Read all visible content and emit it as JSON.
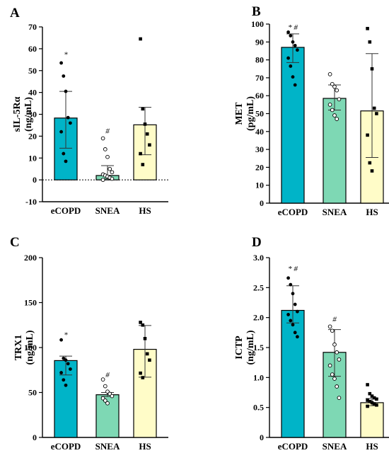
{
  "colors": {
    "eCOPD": "#00B4C8",
    "SNEA": "#7ED8B4",
    "HS": "#FFFCC8",
    "axis": "#000000"
  },
  "chart_data": [
    {
      "panel": "A",
      "type": "bar",
      "ylabel_line1": "sIL-5Rα",
      "ylabel_line2": "(ng/mL)",
      "ylim": [
        -10,
        70
      ],
      "yticks": [
        -10,
        0,
        10,
        20,
        30,
        40,
        50,
        60,
        70
      ],
      "zero_line": true,
      "categories": [
        "eCOPD",
        "SNEA",
        "HS"
      ],
      "values": [
        28.3,
        2.0,
        25.2
      ],
      "err_low": [
        14.5,
        0.5,
        11.5
      ],
      "err_high": [
        40.5,
        6.5,
        33.2
      ],
      "points": [
        [
          53.5,
          47.5,
          40.5,
          28.5,
          26.0,
          22.0,
          12.0,
          8.5
        ],
        [
          19.0,
          14.0,
          10.5,
          5.0,
          3.5,
          2.5,
          2.0,
          1.5,
          1.0,
          0.5,
          0.0
        ],
        [
          64.5,
          32.5,
          25.5,
          21.0,
          16.0,
          12.0,
          7.0
        ]
      ],
      "annotations": [
        "*",
        "#",
        ""
      ],
      "annotation_y": [
        57.5,
        22.5,
        null
      ]
    },
    {
      "panel": "B",
      "type": "bar",
      "ylabel_line1": "MET",
      "ylabel_line2": "(pg/mL)",
      "ylim": [
        0,
        100
      ],
      "yticks": [
        0,
        10,
        20,
        30,
        40,
        50,
        60,
        70,
        80,
        90,
        100
      ],
      "zero_line": false,
      "categories": [
        "eCOPD",
        "SNEA",
        "HS"
      ],
      "values": [
        87.0,
        58.5,
        51.5
      ],
      "err_low": [
        78.5,
        52.0,
        25.5
      ],
      "err_high": [
        94.5,
        66.0,
        83.5
      ],
      "points": [
        [
          95.5,
          93.5,
          90.0,
          88.0,
          85.5,
          81.0,
          76.5,
          70.5,
          66.0
        ],
        [
          72.0,
          66.5,
          65.0,
          63.0,
          58.0,
          55.0,
          52.0,
          49.0,
          47.0
        ],
        [
          97.5,
          90.0,
          75.0,
          53.0,
          50.0,
          38.0,
          22.5,
          18.0
        ]
      ],
      "annotations": [
        "* #",
        "",
        ""
      ],
      "annotation_y": [
        98.5,
        null,
        null
      ]
    },
    {
      "panel": "C",
      "type": "bar",
      "ylabel_line1": "TRX1",
      "ylabel_line2": "(ng/mL)",
      "ylim": [
        0,
        200
      ],
      "yticks": [
        0,
        50,
        100,
        150,
        200
      ],
      "zero_line": false,
      "categories": [
        "eCOPD",
        "SNEA",
        "HS"
      ],
      "values": [
        85.5,
        47.5,
        98.0
      ],
      "err_low": [
        69.5,
        45.5,
        67.0
      ],
      "err_high": [
        90.5,
        50.0,
        124.5
      ],
      "points": [
        [
          108.5,
          88.0,
          86.0,
          82.0,
          76.0,
          72.0,
          64.0,
          58.0
        ],
        [
          64.5,
          57.0,
          51.0,
          48.5,
          46.0,
          43.5,
          41.0,
          38.0
        ],
        [
          128.0,
          125.0,
          110.0,
          93.0,
          86.0,
          71.5,
          66.5
        ]
      ],
      "annotations": [
        "*",
        "#",
        ""
      ],
      "annotation_y": [
        114.5,
        70.0,
        null
      ]
    },
    {
      "panel": "D",
      "type": "bar",
      "ylabel_line1": "ICTP",
      "ylabel_line2": "(ng/mL)",
      "ylim": [
        0,
        3.0
      ],
      "yticks": [
        0,
        0.5,
        1.0,
        1.5,
        2.0,
        2.5,
        3.0
      ],
      "ytick_labels": [
        "0",
        "0.5",
        "1.0",
        "1.5",
        "2.0",
        "2.5",
        "3.0"
      ],
      "zero_line": false,
      "categories": [
        "eCOPD",
        "SNEA",
        "HS"
      ],
      "values": [
        2.12,
        1.42,
        0.58
      ],
      "err_low": [
        1.91,
        1.02,
        0.53
      ],
      "err_high": [
        2.53,
        1.8,
        0.65
      ],
      "points": [
        [
          2.66,
          2.55,
          2.4,
          2.22,
          2.1,
          2.05,
          1.95,
          1.88,
          1.75,
          1.68
        ],
        [
          1.85,
          1.78,
          1.55,
          1.42,
          1.3,
          1.2,
          1.05,
          0.98,
          0.85,
          0.66
        ],
        [
          0.88,
          0.73,
          0.69,
          0.66,
          0.64,
          0.62,
          0.6,
          0.58,
          0.56,
          0.54,
          0.52
        ]
      ],
      "annotations": [
        "* #",
        "#",
        ""
      ],
      "annotation_y": [
        2.82,
        1.98,
        null
      ]
    }
  ]
}
